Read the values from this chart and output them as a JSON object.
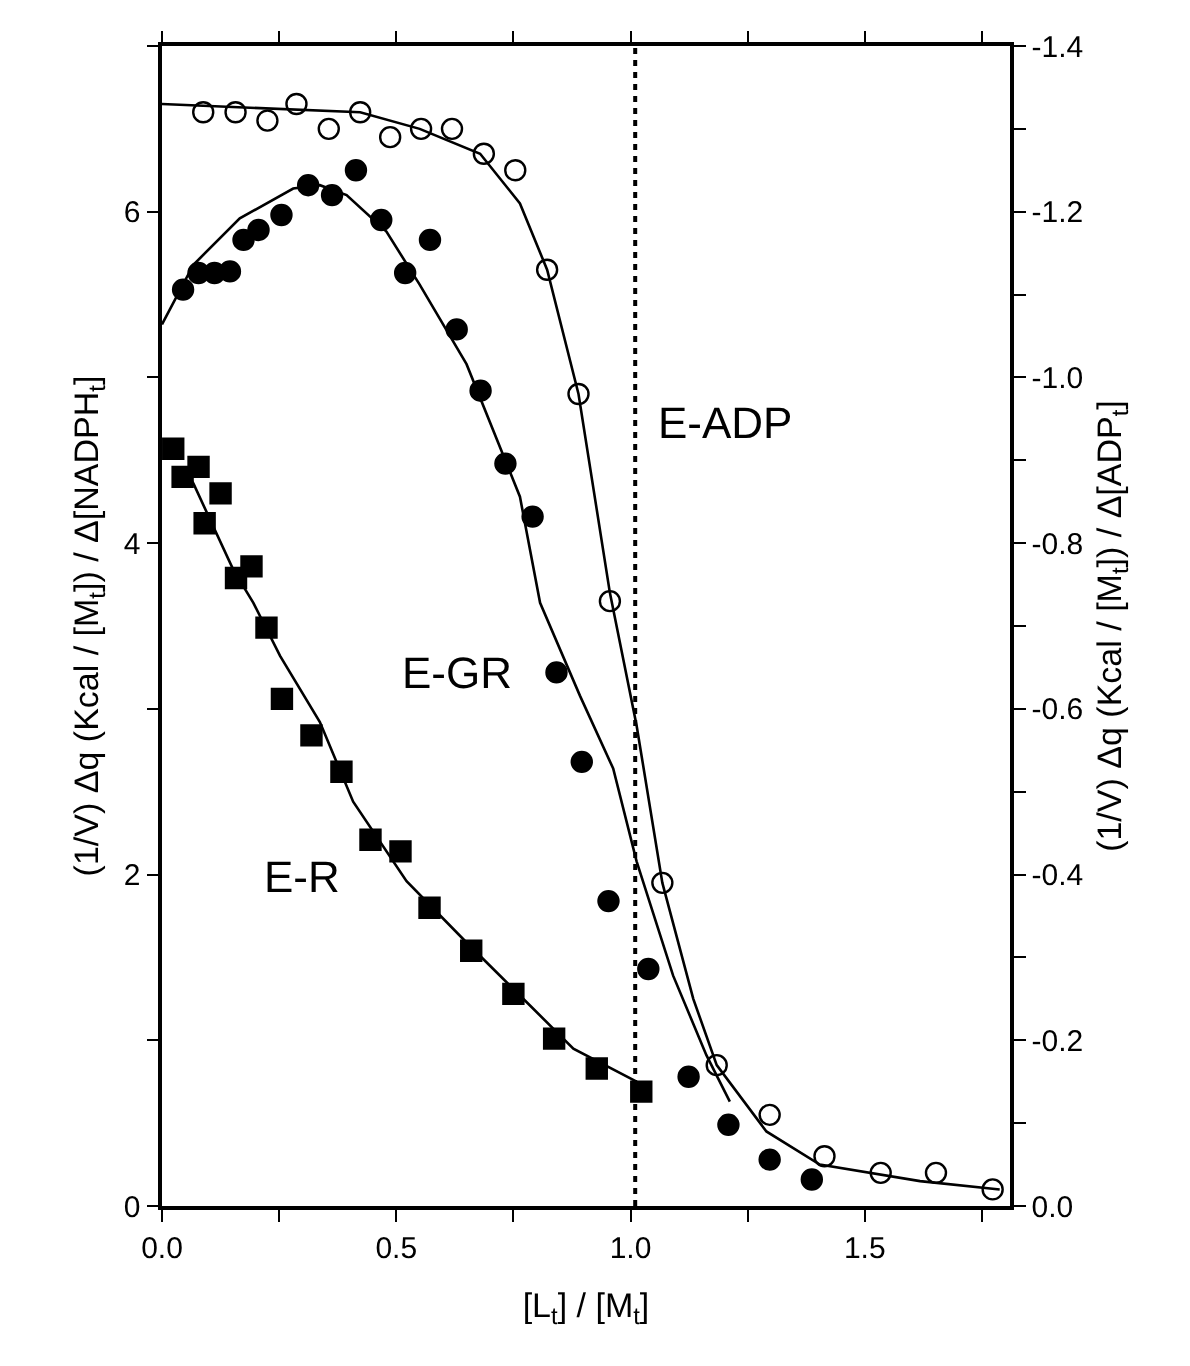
{
  "chart_data": {
    "type": "scatter",
    "xlabel": "[L$_{t}$] / [M$_{t}$]",
    "ylabel": "(1/V) Δq (Kcal / [M$_{t}$]) / Δ[NADPH$_{t}$]",
    "y2label": "(1/V) Δq (Kcal / [M$_{t}$]) / Δ[ADP$_{t}$]",
    "xlim": [
      0,
      1.81
    ],
    "xticks": [
      {
        "value": 0,
        "label": "0.0"
      },
      {
        "value": 0.25,
        "label": null
      },
      {
        "value": 0.5,
        "label": "0.5"
      },
      {
        "value": 0.75,
        "label": null
      },
      {
        "value": 1.0,
        "label": "1.0"
      },
      {
        "value": 1.25,
        "label": null
      },
      {
        "value": 1.5,
        "label": "1.5"
      },
      {
        "value": 1.75,
        "label": null
      }
    ],
    "ylim": [
      0,
      7
    ],
    "yticks": [
      0,
      {
        "value": 1,
        "label": null
      },
      2,
      {
        "value": 3,
        "label": null
      },
      4,
      {
        "value": 5,
        "label": null
      },
      6,
      {
        "value": 7,
        "label": null
      }
    ],
    "y2lim": [
      0,
      -1.4
    ],
    "y2ticks": [
      {
        "value": 0,
        "label": "0.0"
      },
      {
        "value": -0.1,
        "label": null
      },
      {
        "value": -0.2,
        "label": "-0.2"
      },
      {
        "value": -0.3,
        "label": null
      },
      {
        "value": -0.4,
        "label": "-0.4"
      },
      {
        "value": -0.5,
        "label": null
      },
      {
        "value": -0.6,
        "label": "-0.6"
      },
      {
        "value": -0.7,
        "label": null
      },
      {
        "value": -0.8,
        "label": "-0.8"
      },
      {
        "value": -0.9,
        "label": null
      },
      {
        "value": -1.0,
        "label": "-1.0"
      },
      {
        "value": -1.1,
        "label": null
      },
      {
        "value": -1.2,
        "label": "-1.2"
      },
      {
        "value": -1.3,
        "label": null
      },
      {
        "value": -1.4,
        "label": "-1.4"
      }
    ],
    "legend": false,
    "ref_lines": [
      {
        "axis": "x",
        "value": 1.01,
        "line_style": "dotted",
        "color": "#000000"
      }
    ],
    "series": [
      {
        "name": "E-ADP",
        "axis": "y2",
        "marker": "circle-open",
        "color": "#000000",
        "x": [
          0.088,
          0.157,
          0.225,
          0.287,
          0.356,
          0.423,
          0.487,
          0.553,
          0.619,
          0.687,
          0.754,
          0.822,
          0.889,
          0.956,
          1.068,
          1.184,
          1.297,
          1.414,
          1.534,
          1.652,
          1.773
        ],
        "values": [
          -1.32,
          -1.32,
          -1.31,
          -1.33,
          -1.3,
          -1.32,
          -1.29,
          -1.3,
          -1.3,
          -1.27,
          -1.25,
          -1.13,
          -0.98,
          -0.73,
          -0.39,
          -0.17,
          -0.11,
          -0.06,
          -0.04,
          -0.04,
          -0.02
        ]
      },
      {
        "name": "E-GR",
        "marker": "circle",
        "color": "#000000",
        "x": [
          0.045,
          0.078,
          0.112,
          0.145,
          0.174,
          0.206,
          0.255,
          0.312,
          0.363,
          0.414,
          0.468,
          0.519,
          0.572,
          0.629,
          0.68,
          0.733,
          0.791,
          0.842,
          0.896,
          0.953,
          1.038,
          1.124,
          1.209,
          1.297,
          1.387
        ],
        "values": [
          5.53,
          5.63,
          5.63,
          5.64,
          5.83,
          5.89,
          5.98,
          6.16,
          6.1,
          6.25,
          5.95,
          5.63,
          5.83,
          5.29,
          4.92,
          4.48,
          4.16,
          3.22,
          2.68,
          1.84,
          1.43,
          0.78,
          0.49,
          0.28,
          0.16
        ]
      },
      {
        "name": "E-R",
        "marker": "square",
        "color": "#000000",
        "x": [
          0.024,
          0.044,
          0.078,
          0.091,
          0.125,
          0.158,
          0.191,
          0.223,
          0.256,
          0.319,
          0.383,
          0.445,
          0.509,
          0.571,
          0.66,
          0.75,
          0.837,
          0.928,
          1.023
        ],
        "values": [
          4.57,
          4.4,
          4.46,
          4.12,
          4.3,
          3.79,
          3.86,
          3.49,
          3.06,
          2.84,
          2.62,
          2.21,
          2.14,
          1.8,
          1.54,
          1.28,
          1.01,
          0.83,
          0.69
        ]
      },
      {
        "type": "line",
        "axis": "y2",
        "color": "#000000",
        "line_style": "solid",
        "x": [
          0.0,
          0.423,
          0.55,
          0.679,
          0.764,
          0.822,
          0.889,
          0.956,
          1.013,
          1.068,
          1.134,
          1.184,
          1.29,
          1.404,
          1.618,
          1.788
        ],
        "values": [
          -1.33,
          -1.32,
          -1.3,
          -1.27,
          -1.21,
          -1.13,
          -0.98,
          -0.74,
          -0.58,
          -0.39,
          -0.25,
          -0.17,
          -0.09,
          -0.05,
          -0.03,
          -0.02
        ]
      },
      {
        "type": "line",
        "color": "#000000",
        "line_style": "solid",
        "x": [
          0.0,
          0.067,
          0.166,
          0.28,
          0.337,
          0.394,
          0.479,
          0.55,
          0.65,
          0.764,
          0.807,
          0.892,
          0.963,
          1.013,
          1.091,
          1.162,
          1.212
        ],
        "values": [
          5.32,
          5.68,
          5.96,
          6.14,
          6.16,
          6.1,
          5.88,
          5.56,
          5.08,
          4.28,
          3.64,
          3.08,
          2.64,
          2.08,
          1.39,
          0.91,
          0.63
        ]
      },
      {
        "type": "line",
        "color": "#000000",
        "line_style": "solid",
        "x": [
          0.053,
          0.067,
          0.152,
          0.195,
          0.252,
          0.337,
          0.408,
          0.522,
          0.65,
          0.764,
          0.878,
          1.013
        ],
        "values": [
          4.42,
          4.36,
          3.84,
          3.64,
          3.32,
          2.92,
          2.44,
          1.96,
          1.59,
          1.27,
          0.95,
          0.75
        ]
      }
    ]
  }
}
